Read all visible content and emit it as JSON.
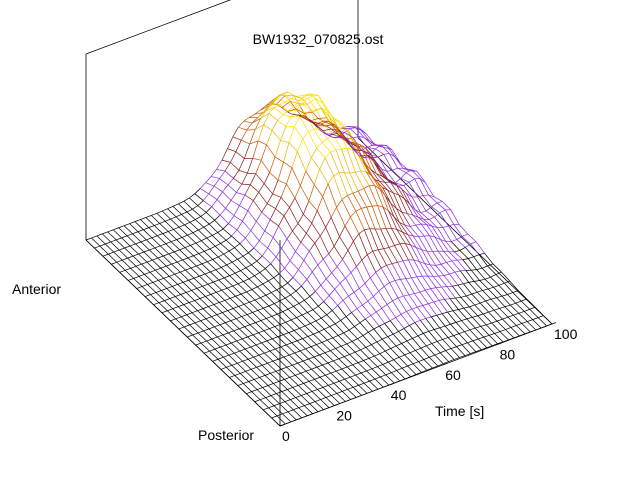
{
  "chart_data": {
    "type": "surface",
    "title": "BW1932_070825.ost",
    "xlabel": "Time [s]",
    "ylabel_ends": {
      "start": "Anterior",
      "end": "Posterior"
    },
    "x_ticks": [
      "0",
      "20",
      "40",
      "60",
      "80",
      "100"
    ],
    "xlim": [
      0,
      100
    ],
    "colormap": [
      "#000000",
      "#8b1a1a",
      "#cc5500",
      "#e8b800",
      "#ffe000",
      "#8a2be2"
    ],
    "grid": false,
    "box": true,
    "surface": {
      "x_points": 51,
      "y_rows": 24,
      "base_level": 0.0,
      "rise_time_s": 45,
      "peak_level": 1.0,
      "peak_time_s": 65,
      "decay_level": 0.3,
      "ridge_row_fraction": 0.25,
      "noise_amplitude": 0.08
    }
  }
}
